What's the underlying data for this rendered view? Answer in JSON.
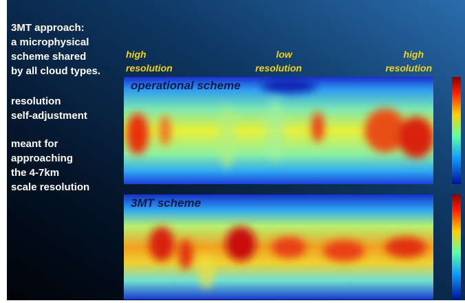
{
  "sidebar": {
    "blocks": [
      [
        "3MT approach:",
        "a microphysical",
        "scheme shared",
        "by all cloud types."
      ],
      [
        "resolution",
        "self-adjustment"
      ],
      [
        "meant for",
        "approaching",
        "the 4-7km",
        "scale resolution"
      ]
    ]
  },
  "resolution_labels": [
    [
      "high",
      "resolution"
    ],
    [
      "low",
      "resolution"
    ],
    [
      "high",
      "resolution"
    ]
  ],
  "panels": [
    {
      "title": "operational scheme"
    },
    {
      "title": "3MT scheme"
    }
  ]
}
